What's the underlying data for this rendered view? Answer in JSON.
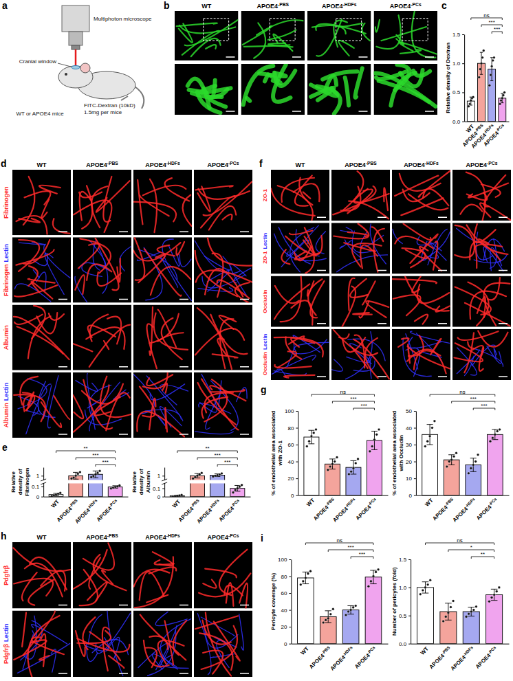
{
  "letters": [
    "a",
    "b",
    "c",
    "d",
    "e",
    "f",
    "g",
    "h",
    "i"
  ],
  "schematic": {
    "labels": [
      "Multiphoton microscope",
      "Cranial window",
      "FITC-Dextran (10kD)",
      "1.5mg per mice",
      "WT or APOE4 mice"
    ]
  },
  "panel_b": {
    "columns": [
      "WT",
      "APOE4-PBS",
      "APOE4-HDFs",
      "APOE4-PCs"
    ]
  },
  "image_grids": [
    {
      "columns": [
        "WT",
        "APOE4-PBS",
        "APOE4-HDFs",
        "APOE4-PCs"
      ],
      "rows": [
        {
          "parts": [
            {
              "text": "Fibrinogen",
              "color": "#ff2a2a"
            }
          ]
        },
        {
          "parts": [
            {
              "text": "Fibrinogen",
              "color": "#ff2a2a"
            },
            {
              "text": "Lectin",
              "color": "#3030ff"
            }
          ]
        },
        {
          "parts": [
            {
              "text": "Albumin",
              "color": "#ff2a2a"
            }
          ]
        },
        {
          "parts": [
            {
              "text": "Albumin",
              "color": "#ff2a2a"
            },
            {
              "text": "Lectin",
              "color": "#3030ff"
            }
          ]
        }
      ]
    },
    {
      "columns": [
        "WT",
        "APOE4-PBS",
        "APOE4-HDFs",
        "APOE4-PCs"
      ],
      "rows": [
        {
          "parts": [
            {
              "text": "ZO-1",
              "color": "#ff2a2a"
            }
          ]
        },
        {
          "parts": [
            {
              "text": "ZO-1",
              "color": "#ff2a2a"
            },
            {
              "text": "Lectin",
              "color": "#3030ff"
            }
          ]
        },
        {
          "parts": [
            {
              "text": "Occludin",
              "color": "#ff2a2a"
            }
          ]
        },
        {
          "parts": [
            {
              "text": "Occludin",
              "color": "#ff2a2a"
            },
            {
              "text": "Lectin",
              "color": "#3030ff"
            }
          ]
        }
      ]
    },
    {
      "columns": [
        "WT",
        "APOE4-PBS",
        "APOE4-HDFs",
        "APOE4-PCs"
      ],
      "rows": [
        {
          "parts": [
            {
              "text": "Pdgfrβ",
              "color": "#ff2a2a"
            }
          ]
        },
        {
          "parts": [
            {
              "text": "Pdgfrβ",
              "color": "#ff2a2a"
            },
            {
              "text": "Lectin",
              "color": "#3030ff"
            }
          ]
        }
      ]
    }
  ],
  "chart_data": [
    {
      "type": "bar",
      "y_label": "Relative density of Dextran",
      "categories": [
        "WT",
        "APOE4-PBS",
        "APOE4-HDFs",
        "APOE4-PCs"
      ],
      "values": [
        0.35,
        1.0,
        0.9,
        0.4
      ],
      "errors": [
        0.07,
        0.19,
        0.2,
        0.08
      ],
      "points": [
        [
          0.26,
          0.3,
          0.36,
          0.4,
          0.42
        ],
        [
          0.76,
          0.9,
          1.0,
          1.1,
          1.22
        ],
        [
          0.62,
          0.8,
          0.95,
          1.05,
          1.1
        ],
        [
          0.3,
          0.36,
          0.4,
          0.45,
          0.5
        ]
      ],
      "colors": [
        "#ffffff",
        "#f4a49c",
        "#a5a8f0",
        "#f0a4ee"
      ],
      "ylim": [
        0,
        1.5
      ],
      "yticks": [
        {
          "value": 0,
          "label": "0.0"
        },
        {
          "value": 0.5,
          "label": "0.5"
        },
        {
          "value": 1,
          "label": "1.0"
        },
        {
          "value": 1.5,
          "label": "1.5"
        }
      ],
      "comparisons": [
        {
          "groups": [
            0,
            3
          ],
          "label": "ns"
        },
        {
          "groups": [
            1,
            3
          ],
          "label": "***"
        },
        {
          "groups": [
            2,
            3
          ],
          "label": "***"
        }
      ]
    },
    {
      "type": "bar",
      "y_label": "Relative density of Fibrinogen",
      "categories": [
        "WT",
        "APOE4-PBS",
        "APOE4-HDFs",
        "APOE4-PCs"
      ],
      "values": [
        0.02,
        1.0,
        1.05,
        0.095
      ],
      "errors": [
        0.012,
        0.12,
        0.12,
        0.012
      ],
      "points": [
        [
          0.005,
          0.012,
          0.02,
          0.028,
          0.036
        ],
        [
          0.9,
          0.93,
          1.0,
          1.07,
          1.13
        ],
        [
          0.95,
          0.99,
          1.05,
          1.1,
          1.17
        ],
        [
          0.08,
          0.088,
          0.095,
          0.1,
          0.11
        ]
      ],
      "colors": [
        "#ffffff",
        "#f4a49c",
        "#a5a8f0",
        "#f0a4ee"
      ],
      "ylim": [
        0,
        1.3
      ],
      "ybreak": [
        0.13,
        0.85
      ],
      "yticks": [
        0,
        0.1,
        1
      ],
      "comparisons": [
        {
          "groups": [
            0,
            3
          ],
          "label": "**"
        },
        {
          "groups": [
            1,
            3
          ],
          "label": "***"
        },
        {
          "groups": [
            2,
            3
          ],
          "label": "***"
        }
      ]
    },
    {
      "type": "bar",
      "y_label": "Relative density of Albumin",
      "categories": [
        "WT",
        "APOE4-PBS",
        "APOE4-HDFs",
        "APOE4-PCs"
      ],
      "values": [
        0.01,
        1.0,
        1.02,
        0.1
      ],
      "errors": [
        0.008,
        0.08,
        0.05,
        0.035
      ],
      "points": [
        [
          0.002,
          0.006,
          0.01,
          0.014,
          0.02
        ],
        [
          0.9,
          0.95,
          1.0,
          1.05,
          1.1
        ],
        [
          0.97,
          1.0,
          1.02,
          1.04,
          1.08
        ],
        [
          0.05,
          0.08,
          0.1,
          0.12,
          0.14
        ]
      ],
      "colors": [
        "#ffffff",
        "#f4a49c",
        "#a5a8f0",
        "#f0a4ee"
      ],
      "ylim": [
        0,
        1.3
      ],
      "ybreak": [
        0.16,
        0.85
      ],
      "yticks": [
        0,
        0.1,
        1
      ],
      "comparisons": [
        {
          "groups": [
            0,
            3
          ],
          "label": "**"
        },
        {
          "groups": [
            1,
            3
          ],
          "label": "***"
        },
        {
          "groups": [
            2,
            3
          ],
          "label": "***"
        }
      ]
    },
    {
      "type": "bar",
      "y_label": "% of endothelial area associated with ZO-1",
      "categories": [
        "WT",
        "APOE4-PBS",
        "APOE4-HDFs",
        "APOE4-PCs"
      ],
      "values": [
        69,
        37,
        33,
        65
      ],
      "errors": [
        8,
        6,
        8,
        11
      ],
      "points": [
        [
          58,
          64,
          70,
          74,
          78
        ],
        [
          30,
          34,
          37,
          40,
          45
        ],
        [
          25,
          28,
          32,
          38,
          43
        ],
        [
          52,
          58,
          66,
          72,
          78
        ]
      ],
      "colors": [
        "#ffffff",
        "#f4a49c",
        "#a5a8f0",
        "#f0a4ee"
      ],
      "ylim": [
        0,
        100
      ],
      "yticks": [
        0,
        20,
        40,
        60,
        80,
        100
      ],
      "comparisons": [
        {
          "groups": [
            0,
            3
          ],
          "label": "ns"
        },
        {
          "groups": [
            1,
            3
          ],
          "label": "***"
        },
        {
          "groups": [
            2,
            3
          ],
          "label": "***"
        }
      ]
    },
    {
      "type": "bar",
      "y_label": "% of endothelial area associated with Occludin",
      "categories": [
        "WT",
        "APOE4-PBS",
        "APOE4-HDFs",
        "APOE4-PCs"
      ],
      "values": [
        36,
        21,
        18,
        36
      ],
      "errors": [
        6,
        3,
        4,
        3
      ],
      "points": [
        [
          29,
          32,
          35,
          40,
          44
        ],
        [
          17,
          20,
          21,
          23,
          25
        ],
        [
          13,
          16,
          18,
          20,
          24
        ],
        [
          32,
          34,
          36,
          38,
          39
        ]
      ],
      "colors": [
        "#ffffff",
        "#f4a49c",
        "#a5a8f0",
        "#f0a4ee"
      ],
      "ylim": [
        0,
        50
      ],
      "yticks": [
        0,
        10,
        20,
        30,
        40,
        50
      ],
      "comparisons": [
        {
          "groups": [
            0,
            3
          ],
          "label": "ns"
        },
        {
          "groups": [
            1,
            3
          ],
          "label": "***"
        },
        {
          "groups": [
            2,
            3
          ],
          "label": "***"
        }
      ]
    },
    {
      "type": "bar",
      "y_label": "Pericyte coverage (%)",
      "categories": [
        "WT",
        "APOE4-PBS",
        "APOE4-HDFs",
        "APOE4-PCs"
      ],
      "values": [
        78,
        32,
        40,
        79
      ],
      "errors": [
        7,
        7,
        5,
        8
      ],
      "points": [
        [
          70,
          74,
          78,
          83,
          86
        ],
        [
          25,
          28,
          30,
          35,
          41
        ],
        [
          34,
          38,
          40,
          43,
          45
        ],
        [
          68,
          74,
          80,
          85,
          88
        ]
      ],
      "colors": [
        "#ffffff",
        "#f4a49c",
        "#a5a8f0",
        "#f0a4ee"
      ],
      "ylim": [
        0,
        100
      ],
      "yticks": [
        0,
        20,
        40,
        60,
        80,
        100
      ],
      "comparisons": [
        {
          "groups": [
            0,
            3
          ],
          "label": "ns"
        },
        {
          "groups": [
            1,
            3
          ],
          "label": "***"
        },
        {
          "groups": [
            2,
            3
          ],
          "label": "***"
        }
      ]
    },
    {
      "type": "bar",
      "y_label": "Number of pericytes (fold)",
      "categories": [
        "WT",
        "APOE4-PBS",
        "APOE4-HDFs",
        "APOE4-PCs"
      ],
      "values": [
        1.0,
        0.57,
        0.57,
        0.87
      ],
      "errors": [
        0.1,
        0.15,
        0.08,
        0.1
      ],
      "points": [
        [
          0.88,
          0.95,
          1.0,
          1.05,
          1.13
        ],
        [
          0.4,
          0.48,
          0.55,
          0.65,
          0.76
        ],
        [
          0.48,
          0.53,
          0.57,
          0.6,
          0.66
        ],
        [
          0.75,
          0.82,
          0.87,
          0.93,
          1.0
        ]
      ],
      "colors": [
        "#ffffff",
        "#f4a49c",
        "#a5a8f0",
        "#f0a4ee"
      ],
      "ylim": [
        0,
        1.5
      ],
      "yticks": [
        {
          "value": 0,
          "label": "0.0"
        },
        {
          "value": 0.5,
          "label": "0.5"
        },
        {
          "value": 1,
          "label": "1.0"
        },
        {
          "value": 1.5,
          "label": "1.5"
        }
      ],
      "comparisons": [
        {
          "groups": [
            0,
            3
          ],
          "label": "ns"
        },
        {
          "groups": [
            1,
            3
          ],
          "label": "*"
        },
        {
          "groups": [
            2,
            3
          ],
          "label": "**"
        }
      ]
    }
  ]
}
